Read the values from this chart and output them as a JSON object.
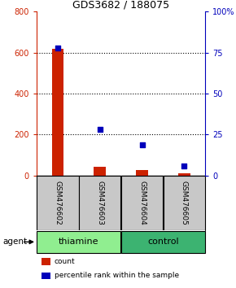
{
  "title": "GDS3682 / 188075",
  "samples": [
    "GSM476602",
    "GSM476603",
    "GSM476604",
    "GSM476605"
  ],
  "counts": [
    620,
    45,
    28,
    10
  ],
  "percentiles": [
    78,
    28,
    19,
    6
  ],
  "group_colors": {
    "thiamine": "#90EE90",
    "control": "#3CB371"
  },
  "left_ylim": [
    0,
    800
  ],
  "right_ylim": [
    0,
    100
  ],
  "left_yticks": [
    0,
    200,
    400,
    600,
    800
  ],
  "right_yticks": [
    0,
    25,
    50,
    75,
    100
  ],
  "right_yticklabels": [
    "0",
    "25",
    "50",
    "75",
    "100%"
  ],
  "left_color": "#CC2200",
  "right_color": "#0000BB",
  "sample_bg_color": "#C8C8C8",
  "agent_label": "agent",
  "legend_count_label": "count",
  "legend_pct_label": "percentile rank within the sample",
  "thiamine_green": "#90EE90",
  "control_green": "#3CB371"
}
